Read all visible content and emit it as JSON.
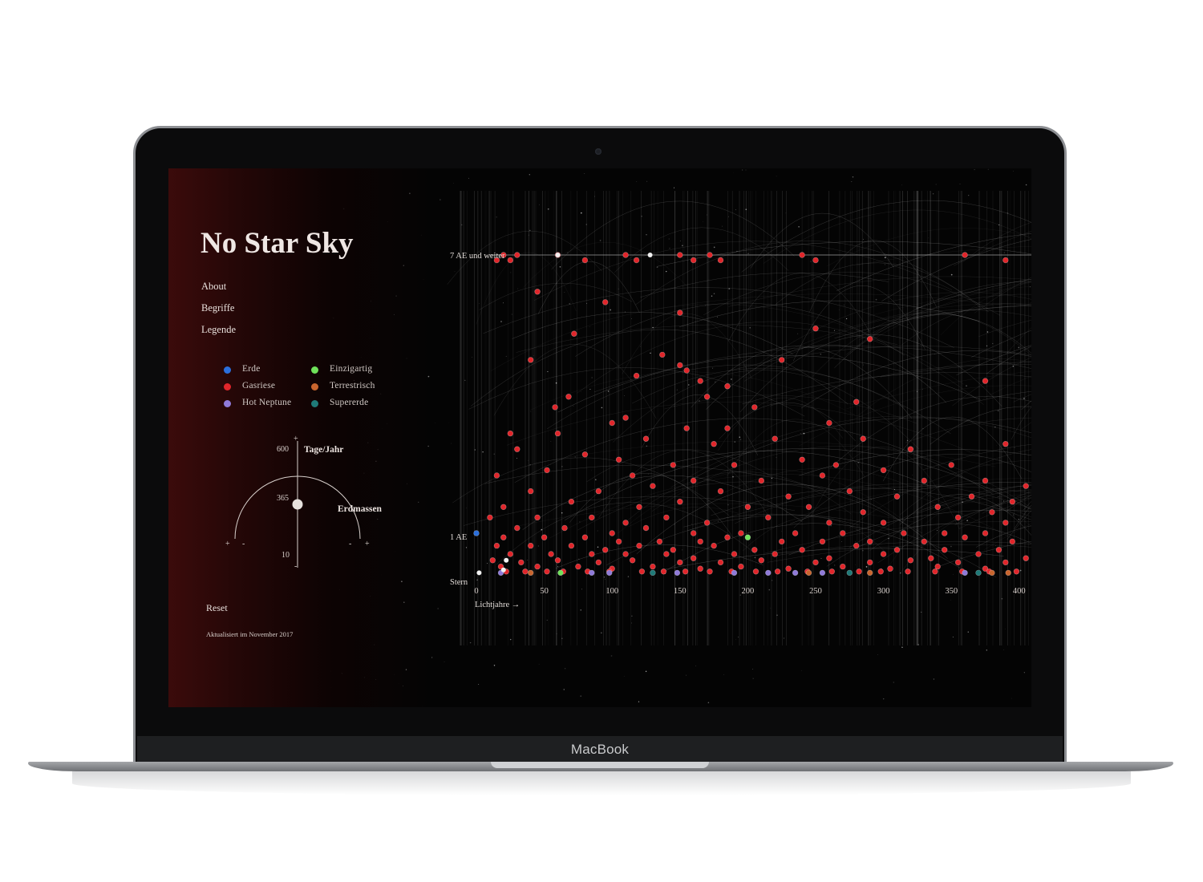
{
  "device": {
    "brand": "MacBook"
  },
  "app": {
    "title": "No Star Sky",
    "nav": [
      "About",
      "Begriffe",
      "Legende"
    ],
    "legend": [
      {
        "label": "Erde",
        "color": "#2a6fdc"
      },
      {
        "label": "Gasriese",
        "color": "#e0262b"
      },
      {
        "label": "Hot Neptune",
        "color": "#8f7ad9"
      },
      {
        "label": "Einzigartig",
        "color": "#6fe25a"
      },
      {
        "label": "Terrestrisch",
        "color": "#c9652e"
      },
      {
        "label": "Supererde",
        "color": "#1f7a78"
      }
    ],
    "dial": {
      "top_value": "600",
      "mid_value": "365",
      "bottom_value": "10",
      "period_label": "Tage/Jahr",
      "mass_label": "Erdmassen",
      "plus": "+",
      "minus": "-"
    },
    "reset_label": "Reset",
    "updated_text": "Aktualisiert im November 2017"
  },
  "chart_data": {
    "type": "scatter",
    "title": "",
    "xlabel": "Lichtjahre →",
    "xlim": [
      0,
      445
    ],
    "x_ticks": [
      0,
      50,
      100,
      150,
      200,
      250,
      300,
      350,
      400
    ],
    "y_levels": [
      "Stern",
      "1 AE",
      "7 AE und weiter"
    ],
    "series": [
      {
        "name": "Gasriese",
        "color": "#e0262b",
        "points": [
          [
            15,
            6.2
          ],
          [
            20,
            6.3
          ],
          [
            25,
            6.2
          ],
          [
            30,
            6.3
          ],
          [
            60,
            6.3
          ],
          [
            80,
            6.2
          ],
          [
            110,
            6.3
          ],
          [
            118,
            6.2
          ],
          [
            150,
            6.3
          ],
          [
            160,
            6.2
          ],
          [
            172,
            6.3
          ],
          [
            180,
            6.2
          ],
          [
            240,
            6.3
          ],
          [
            250,
            6.2
          ],
          [
            360,
            6.3
          ],
          [
            390,
            6.2
          ],
          [
            410,
            6.3
          ],
          [
            440,
            6.2
          ],
          [
            45,
            5.6
          ],
          [
            95,
            5.4
          ],
          [
            150,
            5.2
          ],
          [
            72,
            4.8
          ],
          [
            250,
            4.9
          ],
          [
            290,
            4.7
          ],
          [
            40,
            4.3
          ],
          [
            137,
            4.4
          ],
          [
            225,
            4.3
          ],
          [
            150,
            4.2
          ],
          [
            155,
            4.1
          ],
          [
            165,
            3.9
          ],
          [
            185,
            3.8
          ],
          [
            118,
            4.0
          ],
          [
            375,
            3.9
          ],
          [
            68,
            3.6
          ],
          [
            58,
            3.4
          ],
          [
            170,
            3.6
          ],
          [
            205,
            3.4
          ],
          [
            280,
            3.5
          ],
          [
            100,
            3.1
          ],
          [
            110,
            3.2
          ],
          [
            155,
            3.0
          ],
          [
            185,
            3.0
          ],
          [
            260,
            3.1
          ],
          [
            25,
            2.9
          ],
          [
            60,
            2.9
          ],
          [
            125,
            2.8
          ],
          [
            175,
            2.7
          ],
          [
            220,
            2.8
          ],
          [
            285,
            2.8
          ],
          [
            320,
            2.6
          ],
          [
            390,
            2.7
          ],
          [
            30,
            2.6
          ],
          [
            80,
            2.5
          ],
          [
            105,
            2.4
          ],
          [
            145,
            2.3
          ],
          [
            190,
            2.3
          ],
          [
            240,
            2.4
          ],
          [
            265,
            2.3
          ],
          [
            300,
            2.2
          ],
          [
            350,
            2.3
          ],
          [
            420,
            2.2
          ],
          [
            15,
            2.1
          ],
          [
            52,
            2.2
          ],
          [
            115,
            2.1
          ],
          [
            160,
            2.0
          ],
          [
            210,
            2.0
          ],
          [
            255,
            2.1
          ],
          [
            330,
            2.0
          ],
          [
            375,
            2.0
          ],
          [
            405,
            1.9
          ],
          [
            440,
            2.0
          ],
          [
            40,
            1.8
          ],
          [
            90,
            1.8
          ],
          [
            130,
            1.9
          ],
          [
            180,
            1.8
          ],
          [
            230,
            1.7
          ],
          [
            275,
            1.8
          ],
          [
            310,
            1.7
          ],
          [
            365,
            1.7
          ],
          [
            395,
            1.6
          ],
          [
            20,
            1.5
          ],
          [
            70,
            1.6
          ],
          [
            120,
            1.5
          ],
          [
            150,
            1.6
          ],
          [
            200,
            1.5
          ],
          [
            245,
            1.5
          ],
          [
            285,
            1.4
          ],
          [
            340,
            1.5
          ],
          [
            380,
            1.4
          ],
          [
            425,
            1.4
          ],
          [
            10,
            1.3
          ],
          [
            45,
            1.3
          ],
          [
            85,
            1.3
          ],
          [
            110,
            1.2
          ],
          [
            140,
            1.3
          ],
          [
            170,
            1.2
          ],
          [
            215,
            1.3
          ],
          [
            260,
            1.2
          ],
          [
            300,
            1.2
          ],
          [
            355,
            1.3
          ],
          [
            390,
            1.2
          ],
          [
            440,
            1.1
          ],
          [
            30,
            1.1
          ],
          [
            65,
            1.1
          ],
          [
            100,
            1.0
          ],
          [
            125,
            1.1
          ],
          [
            160,
            1.0
          ],
          [
            195,
            1.0
          ],
          [
            235,
            1.0
          ],
          [
            270,
            1.0
          ],
          [
            315,
            1.0
          ],
          [
            345,
            1.0
          ],
          [
            375,
            1.0
          ],
          [
            410,
            1.0
          ],
          [
            20,
            0.9
          ],
          [
            50,
            0.9
          ],
          [
            80,
            0.9
          ],
          [
            105,
            0.8
          ],
          [
            135,
            0.8
          ],
          [
            165,
            0.8
          ],
          [
            185,
            0.9
          ],
          [
            225,
            0.8
          ],
          [
            255,
            0.8
          ],
          [
            290,
            0.8
          ],
          [
            330,
            0.8
          ],
          [
            360,
            0.9
          ],
          [
            395,
            0.8
          ],
          [
            430,
            0.8
          ],
          [
            15,
            0.7
          ],
          [
            40,
            0.7
          ],
          [
            70,
            0.7
          ],
          [
            95,
            0.6
          ],
          [
            120,
            0.7
          ],
          [
            145,
            0.6
          ],
          [
            175,
            0.7
          ],
          [
            205,
            0.6
          ],
          [
            240,
            0.6
          ],
          [
            280,
            0.7
          ],
          [
            310,
            0.6
          ],
          [
            345,
            0.6
          ],
          [
            385,
            0.6
          ],
          [
            420,
            0.7
          ],
          [
            25,
            0.5
          ],
          [
            55,
            0.5
          ],
          [
            85,
            0.5
          ],
          [
            110,
            0.5
          ],
          [
            140,
            0.5
          ],
          [
            160,
            0.4
          ],
          [
            190,
            0.5
          ],
          [
            220,
            0.5
          ],
          [
            260,
            0.4
          ],
          [
            300,
            0.5
          ],
          [
            335,
            0.4
          ],
          [
            370,
            0.5
          ],
          [
            405,
            0.4
          ],
          [
            440,
            0.5
          ],
          [
            12,
            0.35
          ],
          [
            33,
            0.3
          ],
          [
            60,
            0.35
          ],
          [
            90,
            0.3
          ],
          [
            115,
            0.35
          ],
          [
            150,
            0.3
          ],
          [
            180,
            0.3
          ],
          [
            210,
            0.35
          ],
          [
            250,
            0.3
          ],
          [
            290,
            0.3
          ],
          [
            320,
            0.35
          ],
          [
            355,
            0.3
          ],
          [
            390,
            0.3
          ],
          [
            425,
            0.35
          ],
          [
            18,
            0.2
          ],
          [
            45,
            0.2
          ],
          [
            75,
            0.2
          ],
          [
            100,
            0.15
          ],
          [
            130,
            0.2
          ],
          [
            165,
            0.15
          ],
          [
            195,
            0.2
          ],
          [
            230,
            0.15
          ],
          [
            270,
            0.2
          ],
          [
            305,
            0.15
          ],
          [
            340,
            0.2
          ],
          [
            375,
            0.15
          ],
          [
            410,
            0.2
          ],
          [
            438,
            0.15
          ],
          [
            22,
            0.08
          ],
          [
            36,
            0.08
          ],
          [
            52,
            0.08
          ],
          [
            64,
            0.08
          ],
          [
            82,
            0.08
          ],
          [
            98,
            0.08
          ],
          [
            122,
            0.08
          ],
          [
            138,
            0.08
          ],
          [
            154,
            0.08
          ],
          [
            172,
            0.08
          ],
          [
            188,
            0.08
          ],
          [
            206,
            0.08
          ],
          [
            222,
            0.08
          ],
          [
            244,
            0.08
          ],
          [
            262,
            0.08
          ],
          [
            282,
            0.08
          ],
          [
            298,
            0.08
          ],
          [
            318,
            0.08
          ],
          [
            338,
            0.08
          ],
          [
            358,
            0.08
          ],
          [
            378,
            0.08
          ],
          [
            398,
            0.08
          ],
          [
            418,
            0.08
          ],
          [
            438,
            0.08
          ]
        ]
      },
      {
        "name": "Hot Neptune",
        "color": "#8f7ad9",
        "points": [
          [
            18,
            0.05
          ],
          [
            85,
            0.05
          ],
          [
            98,
            0.05
          ],
          [
            148,
            0.05
          ],
          [
            190,
            0.05
          ],
          [
            215,
            0.05
          ],
          [
            235,
            0.05
          ],
          [
            255,
            0.05
          ],
          [
            360,
            0.05
          ],
          [
            430,
            0.05
          ],
          [
            435,
            0.05
          ]
        ]
      },
      {
        "name": "Terrestrisch",
        "color": "#c9652e",
        "points": [
          [
            40,
            0.05
          ],
          [
            245,
            0.05
          ],
          [
            290,
            0.05
          ],
          [
            380,
            0.05
          ],
          [
            392,
            0.05
          ]
        ]
      },
      {
        "name": "Supererde",
        "color": "#1f7a78",
        "points": [
          [
            130,
            0.05
          ],
          [
            275,
            0.05
          ],
          [
            370,
            0.05
          ]
        ]
      },
      {
        "name": "Einzigartig",
        "color": "#6fe25a",
        "points": [
          [
            200,
            0.9
          ],
          [
            62,
            0.05
          ]
        ]
      },
      {
        "name": "Erde",
        "color": "#2a6fdc",
        "points": [
          [
            0,
            1.0
          ]
        ]
      }
    ]
  }
}
